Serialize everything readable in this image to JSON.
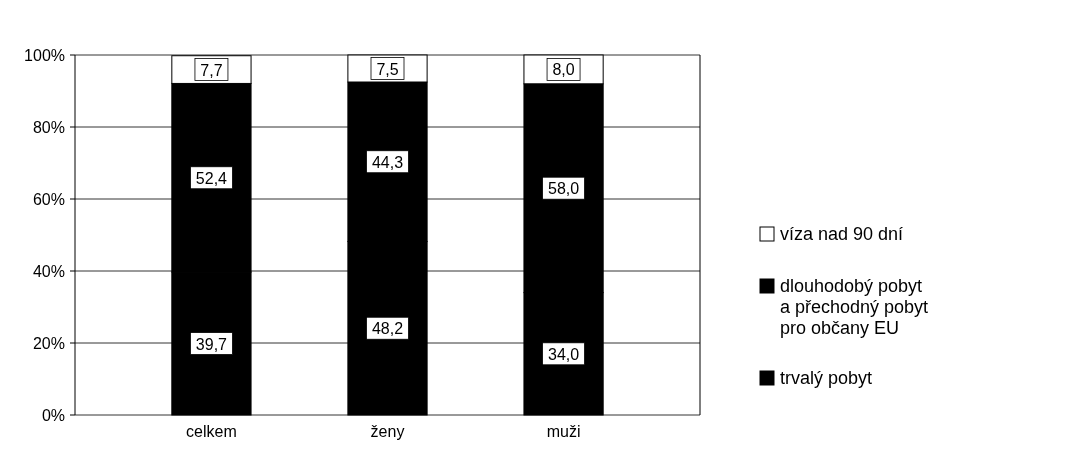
{
  "chart_data": {
    "type": "bar",
    "stacked": true,
    "categories": [
      "celkem",
      "ženy",
      "muži"
    ],
    "series": [
      {
        "name": "trvalý pobyt",
        "color": "#000000",
        "values": [
          39.7,
          48.2,
          34.0
        ],
        "value_labels": [
          "39,7",
          "48,2",
          "34,0"
        ]
      },
      {
        "name": "dlouhodobý pobyt a přechodný pobyt pro občany EU",
        "color": "#000000",
        "values": [
          52.4,
          44.3,
          58.0
        ],
        "value_labels": [
          "52,4",
          "44,3",
          "58,0"
        ]
      },
      {
        "name": "víza nad 90 dní",
        "color": "#ffffff",
        "values": [
          7.7,
          7.5,
          8.0
        ],
        "value_labels": [
          "7,7",
          "7,5",
          "8,0"
        ]
      }
    ],
    "ylim": [
      0,
      100
    ],
    "yticks": [
      {
        "value": 0,
        "label": "0%"
      },
      {
        "value": 20,
        "label": "20%"
      },
      {
        "value": 40,
        "label": "40%"
      },
      {
        "value": 60,
        "label": "60%"
      },
      {
        "value": 80,
        "label": "80%"
      },
      {
        "value": 100,
        "label": "100%"
      }
    ],
    "grid": "y",
    "legend": "right"
  }
}
